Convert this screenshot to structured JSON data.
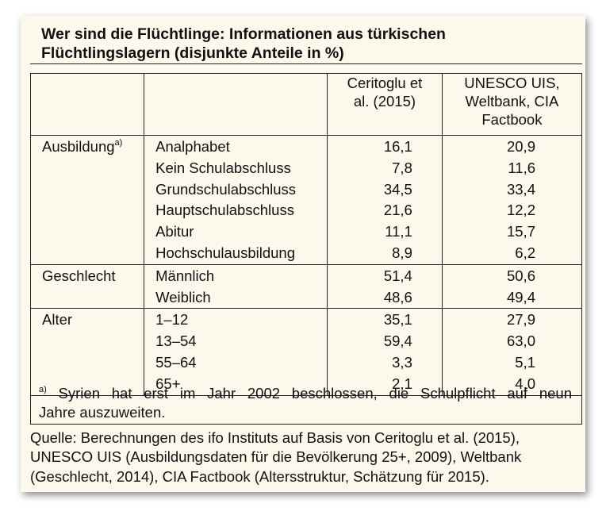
{
  "title": {
    "line1": "Wer sind die Flüchtlinge: Informationen aus türkischen",
    "line2": "Flüchtlingslagern (disjunkte Anteile in %)"
  },
  "table": {
    "headers": {
      "col3": [
        "Ceritoglu et",
        "al. (2015)"
      ],
      "col4": [
        "UNESCO UIS,",
        "Weltbank, CIA",
        "Factbook"
      ]
    },
    "groups": [
      {
        "label": "Ausbildung",
        "footnote_mark": "a)",
        "rows": [
          {
            "label": "Analphabet",
            "v1": "16,1",
            "v2": "20,9"
          },
          {
            "label": "Kein Schulabschluss",
            "v1": "7,8",
            "v2": "11,6"
          },
          {
            "label": "Grundschulabschluss",
            "v1": "34,5",
            "v2": "33,4"
          },
          {
            "label": "Hauptschulabschluss",
            "v1": "21,6",
            "v2": "12,2"
          },
          {
            "label": "Abitur",
            "v1": "11,1",
            "v2": "15,7"
          },
          {
            "label": "Hochschulausbildung",
            "v1": "8,9",
            "v2": "6,2"
          }
        ]
      },
      {
        "label": "Geschlecht",
        "rows": [
          {
            "label": "Männlich",
            "v1": "51,4",
            "v2": "50,6"
          },
          {
            "label": "Weiblich",
            "v1": "48,6",
            "v2": "49,4"
          }
        ]
      },
      {
        "label": "Alter",
        "rows": [
          {
            "label": "1–12",
            "v1": "35,1",
            "v2": "27,9"
          },
          {
            "label": "13–54",
            "v1": "59,4",
            "v2": "63,0"
          },
          {
            "label": "55–64",
            "v1": "3,3",
            "v2": "5,1"
          },
          {
            "label": "65+",
            "v1": "2,1",
            "v2": "4,0"
          }
        ]
      }
    ]
  },
  "footnote": {
    "mark": "a)",
    "line1": "Syrien hat erst im Jahr 2002 beschlossen, die Schulpflicht auf neun",
    "line2": "Jahre auszuweiten."
  },
  "source": {
    "line1": "Quelle: Berechnungen des ifo Instituts auf Basis von Ceritoglu et al. (2015),",
    "line2": "UNESCO UIS (Ausbildungsdaten für die Bevölkerung 25+, 2009), Weltbank",
    "line3": "(Geschlecht, 2014), CIA Factbook (Altersstruktur, Schätzung für 2015)."
  }
}
